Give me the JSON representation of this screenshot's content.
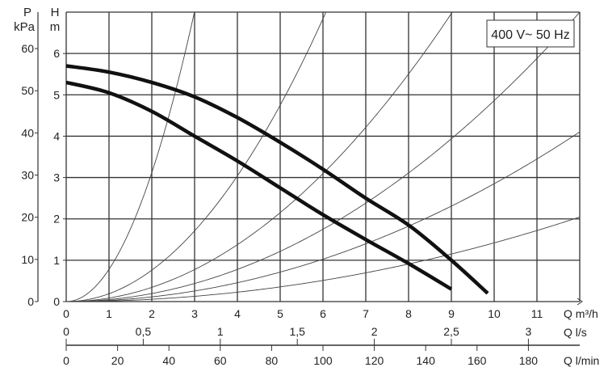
{
  "chart_data": {
    "type": "line",
    "title": "",
    "annotation": "400 V~ 50 Hz",
    "grid": true,
    "xlabel": "Q m³/h",
    "xlim": [
      0,
      12
    ],
    "x_ticks": [
      0,
      1,
      2,
      3,
      4,
      5,
      6,
      7,
      8,
      9,
      10,
      11
    ],
    "ylabel": "H",
    "yunit": "m",
    "ylim": [
      0,
      7
    ],
    "y_ticks": [
      0,
      1,
      2,
      3,
      4,
      5,
      6
    ],
    "secondary_y": {
      "label": "P",
      "unit": "kPa",
      "ticks": [
        0,
        10,
        20,
        30,
        40,
        50,
        60
      ]
    },
    "secondary_x": [
      {
        "label": "Q l/s",
        "ticks": [
          0,
          0.5,
          1,
          1.5,
          2,
          2.5,
          3
        ],
        "tick_labels": [
          "0",
          "0,5",
          "1",
          "1,5",
          "2",
          "2,5",
          "3"
        ],
        "factor_from_m3h": 3.6
      },
      {
        "label": "Q l/min",
        "ticks": [
          0,
          20,
          40,
          60,
          80,
          100,
          120,
          140,
          160,
          180
        ],
        "tick_labels": [
          "0",
          "20",
          "40",
          "60",
          "80",
          "100",
          "120",
          "140",
          "160",
          "180"
        ],
        "factor_from_m3h": 0.06
      }
    ],
    "series": [
      {
        "values": [
          [
            0,
            5.7
          ],
          [
            1,
            5.55
          ],
          [
            2,
            5.3
          ],
          [
            3,
            4.95
          ],
          [
            4,
            4.45
          ],
          [
            5,
            3.85
          ],
          [
            6,
            3.2
          ],
          [
            7,
            2.5
          ],
          [
            8,
            1.85
          ],
          [
            9,
            1.0
          ],
          [
            9.85,
            0.2
          ]
        ]
      },
      {
        "values": [
          [
            0,
            5.3
          ],
          [
            1,
            5.05
          ],
          [
            2,
            4.6
          ],
          [
            3,
            4.0
          ],
          [
            4,
            3.4
          ],
          [
            5,
            2.75
          ],
          [
            6,
            2.1
          ],
          [
            7,
            1.5
          ],
          [
            8,
            0.92
          ],
          [
            9,
            0.3
          ]
        ]
      }
    ],
    "system_curves_k": [
      0.78,
      0.19,
      0.086,
      0.0486,
      0.0285,
      0.0142
    ]
  }
}
